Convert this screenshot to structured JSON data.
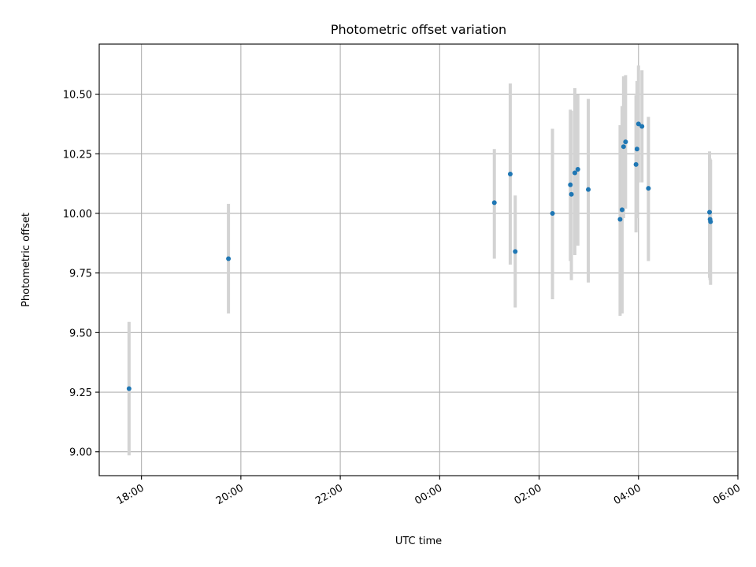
{
  "chart_data": {
    "type": "scatter",
    "title": "Photometric offset variation",
    "xlabel": "UTC time",
    "ylabel": "Photometric offset",
    "x_unit": "hours since 00:00 of day 2 (negative = previous day)",
    "xlim": [
      -6.85,
      6.0
    ],
    "ylim": [
      8.9,
      10.71
    ],
    "x_ticks": [
      {
        "value": -6,
        "label": "18:00"
      },
      {
        "value": -4,
        "label": "20:00"
      },
      {
        "value": -2,
        "label": "22:00"
      },
      {
        "value": 0,
        "label": "00:00"
      },
      {
        "value": 2,
        "label": "02:00"
      },
      {
        "value": 4,
        "label": "04:00"
      },
      {
        "value": 6,
        "label": "06:00"
      }
    ],
    "y_ticks": [
      {
        "value": 9.0,
        "label": "9.00"
      },
      {
        "value": 9.25,
        "label": "9.25"
      },
      {
        "value": 9.5,
        "label": "9.50"
      },
      {
        "value": 9.75,
        "label": "9.75"
      },
      {
        "value": 10.0,
        "label": "10.00"
      },
      {
        "value": 10.25,
        "label": "10.25"
      },
      {
        "value": 10.5,
        "label": "10.50"
      }
    ],
    "grid": true,
    "marker_color": "#1f77b4",
    "errorbar_color": "#d3d3d3",
    "points": [
      {
        "x": -6.25,
        "y": 9.265,
        "lo": 8.985,
        "hi": 9.545
      },
      {
        "x": -4.25,
        "y": 9.81,
        "lo": 9.58,
        "hi": 10.04
      },
      {
        "x": 1.1,
        "y": 10.045,
        "lo": 9.81,
        "hi": 10.27
      },
      {
        "x": 1.42,
        "y": 10.165,
        "lo": 9.785,
        "hi": 10.545
      },
      {
        "x": 1.52,
        "y": 9.84,
        "lo": 9.605,
        "hi": 10.075
      },
      {
        "x": 2.27,
        "y": 10.0,
        "lo": 9.64,
        "hi": 10.355
      },
      {
        "x": 2.63,
        "y": 10.12,
        "lo": 9.8,
        "hi": 10.435
      },
      {
        "x": 2.65,
        "y": 10.08,
        "lo": 9.72,
        "hi": 10.43
      },
      {
        "x": 2.72,
        "y": 10.17,
        "lo": 9.825,
        "hi": 10.525
      },
      {
        "x": 2.78,
        "y": 10.185,
        "lo": 9.865,
        "hi": 10.5
      },
      {
        "x": 2.99,
        "y": 10.1,
        "lo": 9.71,
        "hi": 10.48
      },
      {
        "x": 3.63,
        "y": 9.975,
        "lo": 9.57,
        "hi": 10.37
      },
      {
        "x": 3.67,
        "y": 10.015,
        "lo": 9.58,
        "hi": 10.45
      },
      {
        "x": 3.7,
        "y": 10.28,
        "lo": 9.98,
        "hi": 10.575
      },
      {
        "x": 3.74,
        "y": 10.3,
        "lo": 10.02,
        "hi": 10.58
      },
      {
        "x": 3.95,
        "y": 10.205,
        "lo": 9.92,
        "hi": 10.495
      },
      {
        "x": 3.97,
        "y": 10.27,
        "lo": 9.98,
        "hi": 10.555
      },
      {
        "x": 4.0,
        "y": 10.375,
        "lo": 10.13,
        "hi": 10.62
      },
      {
        "x": 4.07,
        "y": 10.365,
        "lo": 10.13,
        "hi": 10.6
      },
      {
        "x": 4.2,
        "y": 10.105,
        "lo": 9.8,
        "hi": 10.405
      },
      {
        "x": 5.43,
        "y": 10.005,
        "lo": 9.73,
        "hi": 10.26
      },
      {
        "x": 5.44,
        "y": 9.975,
        "lo": 9.72,
        "hi": 10.23
      },
      {
        "x": 5.45,
        "y": 9.965,
        "lo": 9.7,
        "hi": 10.225
      }
    ]
  }
}
